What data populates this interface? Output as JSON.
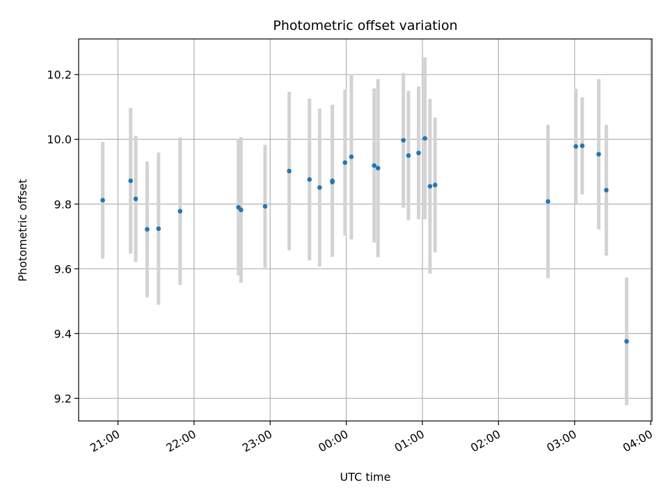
{
  "chart_data": {
    "type": "scatter",
    "title": "Photometric offset variation",
    "xlabel": "UTC time",
    "ylabel": "Photometric offset",
    "grid": true,
    "x_ticks": [
      "21:00",
      "22:00",
      "23:00",
      "00:00",
      "01:00",
      "02:00",
      "03:00",
      "04:00"
    ],
    "y_ticks": [
      "9.2",
      "9.4",
      "9.6",
      "9.8",
      "10.0",
      "10.2"
    ],
    "ylim": [
      9.13,
      10.31
    ],
    "xlim": [
      "20:29",
      "04:01"
    ],
    "colors": {
      "point": "#1f77b4",
      "errorbar": "#d3d3d3",
      "grid": "#b0b0b0"
    },
    "points": [
      {
        "x": "20:48",
        "y": 9.812,
        "yerr": 0.18
      },
      {
        "x": "21:10",
        "y": 9.872,
        "yerr": 0.225
      },
      {
        "x": "21:14",
        "y": 9.816,
        "yerr": 0.195
      },
      {
        "x": "21:23",
        "y": 9.722,
        "yerr": 0.21
      },
      {
        "x": "21:32",
        "y": 9.724,
        "yerr": 0.235
      },
      {
        "x": "21:49",
        "y": 9.778,
        "yerr": 0.228
      },
      {
        "x": "22:35",
        "y": 9.79,
        "yerr": 0.21
      },
      {
        "x": "22:37",
        "y": 9.782,
        "yerr": 0.225
      },
      {
        "x": "22:56",
        "y": 9.793,
        "yerr": 0.19
      },
      {
        "x": "23:15",
        "y": 9.902,
        "yerr": 0.245
      },
      {
        "x": "23:31",
        "y": 9.876,
        "yerr": 0.25
      },
      {
        "x": "23:39",
        "y": 9.851,
        "yerr": 0.244
      },
      {
        "x": "23:49",
        "y": 9.872,
        "yerr": 0.235
      },
      {
        "x": "23:49",
        "y": 9.868,
        "yerr": 0.2
      },
      {
        "x": "23:59",
        "y": 9.928,
        "yerr": 0.225
      },
      {
        "x": "00:04",
        "y": 9.946,
        "yerr": 0.255
      },
      {
        "x": "00:22",
        "y": 9.919,
        "yerr": 0.238
      },
      {
        "x": "00:25",
        "y": 9.911,
        "yerr": 0.275
      },
      {
        "x": "00:45",
        "y": 9.997,
        "yerr": 0.208
      },
      {
        "x": "00:49",
        "y": 9.95,
        "yerr": 0.2
      },
      {
        "x": "00:57",
        "y": 9.958,
        "yerr": 0.205
      },
      {
        "x": "01:02",
        "y": 10.003,
        "yerr": 0.25
      },
      {
        "x": "01:06",
        "y": 9.855,
        "yerr": 0.27
      },
      {
        "x": "01:10",
        "y": 9.859,
        "yerr": 0.208
      },
      {
        "x": "02:39",
        "y": 9.808,
        "yerr": 0.237
      },
      {
        "x": "03:01",
        "y": 9.978,
        "yerr": 0.178
      },
      {
        "x": "03:06",
        "y": 9.98,
        "yerr": 0.15
      },
      {
        "x": "03:19",
        "y": 9.954,
        "yerr": 0.232
      },
      {
        "x": "03:25",
        "y": 9.843,
        "yerr": 0.202
      },
      {
        "x": "03:41",
        "y": 9.376,
        "yerr": 0.197
      }
    ]
  }
}
